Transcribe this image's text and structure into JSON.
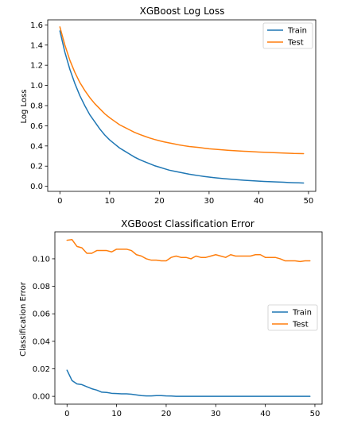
{
  "chart_data": [
    {
      "type": "line",
      "title": "XGBoost Log Loss",
      "xlabel": "",
      "ylabel": "Log Loss",
      "xlim": [
        -2.45,
        51.45
      ],
      "ylim": [
        -0.05,
        1.65
      ],
      "xticks": [
        0,
        10,
        20,
        30,
        40,
        50
      ],
      "yticks": [
        0.0,
        0.2,
        0.4,
        0.6,
        0.8,
        1.0,
        1.2,
        1.4,
        1.6
      ],
      "ytick_labels": [
        "0.0",
        "0.2",
        "0.4",
        "0.6",
        "0.8",
        "1.0",
        "1.2",
        "1.4",
        "1.6"
      ],
      "legend_position": "upper right",
      "grid": false,
      "series": [
        {
          "name": "Train",
          "color": "#1f77b4",
          "x": [
            0,
            1,
            2,
            3,
            4,
            5,
            6,
            7,
            8,
            9,
            10,
            11,
            12,
            13,
            14,
            15,
            16,
            17,
            18,
            19,
            20,
            21,
            22,
            23,
            24,
            25,
            26,
            27,
            28,
            29,
            30,
            31,
            32,
            33,
            34,
            35,
            36,
            37,
            38,
            39,
            40,
            41,
            42,
            43,
            44,
            45,
            46,
            47,
            48,
            49
          ],
          "values": [
            1.54,
            1.33,
            1.16,
            1.02,
            0.9,
            0.8,
            0.71,
            0.64,
            0.57,
            0.51,
            0.46,
            0.42,
            0.38,
            0.35,
            0.32,
            0.29,
            0.265,
            0.245,
            0.225,
            0.205,
            0.19,
            0.175,
            0.16,
            0.15,
            0.14,
            0.13,
            0.12,
            0.112,
            0.105,
            0.098,
            0.092,
            0.086,
            0.081,
            0.076,
            0.072,
            0.068,
            0.064,
            0.06,
            0.057,
            0.054,
            0.051,
            0.048,
            0.046,
            0.044,
            0.042,
            0.04,
            0.038,
            0.036,
            0.035,
            0.033
          ]
        },
        {
          "name": "Test",
          "color": "#ff7f0e",
          "x": [
            0,
            1,
            2,
            3,
            4,
            5,
            6,
            7,
            8,
            9,
            10,
            11,
            12,
            13,
            14,
            15,
            16,
            17,
            18,
            19,
            20,
            21,
            22,
            23,
            24,
            25,
            26,
            27,
            28,
            29,
            30,
            31,
            32,
            33,
            34,
            35,
            36,
            37,
            38,
            39,
            40,
            41,
            42,
            43,
            44,
            45,
            46,
            47,
            48,
            49
          ],
          "values": [
            1.58,
            1.4,
            1.25,
            1.13,
            1.03,
            0.95,
            0.88,
            0.82,
            0.77,
            0.72,
            0.68,
            0.645,
            0.61,
            0.585,
            0.56,
            0.535,
            0.515,
            0.497,
            0.48,
            0.465,
            0.452,
            0.44,
            0.43,
            0.42,
            0.41,
            0.402,
            0.395,
            0.39,
            0.385,
            0.378,
            0.372,
            0.368,
            0.364,
            0.36,
            0.356,
            0.353,
            0.35,
            0.347,
            0.345,
            0.343,
            0.34,
            0.338,
            0.336,
            0.334,
            0.332,
            0.33,
            0.328,
            0.326,
            0.325,
            0.324
          ]
        }
      ]
    },
    {
      "type": "line",
      "title": "XGBoost Classification Error",
      "xlabel": "",
      "ylabel": "Classification Error",
      "xlim": [
        -2.45,
        51.45
      ],
      "ylim": [
        -0.0057,
        0.1196
      ],
      "xticks": [
        0,
        10,
        20,
        30,
        40,
        50
      ],
      "yticks": [
        0.0,
        0.02,
        0.04,
        0.06,
        0.08,
        0.1
      ],
      "ytick_labels": [
        "0.00",
        "0.02",
        "0.04",
        "0.06",
        "0.08",
        "0.10"
      ],
      "legend_position": "center right",
      "grid": false,
      "series": [
        {
          "name": "Train",
          "color": "#1f77b4",
          "x": [
            0,
            1,
            2,
            3,
            4,
            5,
            6,
            7,
            8,
            9,
            10,
            11,
            12,
            13,
            14,
            15,
            16,
            17,
            18,
            19,
            20,
            21,
            22,
            23,
            24,
            25,
            26,
            27,
            28,
            29,
            30,
            31,
            32,
            33,
            34,
            35,
            36,
            37,
            38,
            39,
            40,
            41,
            42,
            43,
            44,
            45,
            46,
            47,
            48,
            49
          ],
          "values": [
            0.019,
            0.0115,
            0.009,
            0.0085,
            0.007,
            0.0055,
            0.0045,
            0.003,
            0.0028,
            0.0022,
            0.002,
            0.0018,
            0.0018,
            0.0015,
            0.001,
            0.0005,
            0.0003,
            0.0003,
            0.0005,
            0.0005,
            0.0003,
            0.0002,
            0.0,
            0.0,
            0.0,
            0.0,
            0.0,
            0.0,
            0.0,
            0.0,
            0.0,
            0.0,
            0.0,
            0.0,
            0.0,
            0.0,
            0.0,
            0.0,
            0.0,
            0.0,
            0.0,
            0.0,
            0.0,
            0.0,
            0.0,
            0.0,
            0.0,
            0.0,
            0.0,
            0.0
          ]
        },
        {
          "name": "Test",
          "color": "#ff7f0e",
          "x": [
            0,
            1,
            2,
            3,
            4,
            5,
            6,
            7,
            8,
            9,
            10,
            11,
            12,
            13,
            14,
            15,
            16,
            17,
            18,
            19,
            20,
            21,
            22,
            23,
            24,
            25,
            26,
            27,
            28,
            29,
            30,
            31,
            32,
            33,
            34,
            35,
            36,
            37,
            38,
            39,
            40,
            41,
            42,
            43,
            44,
            45,
            46,
            47,
            48,
            49
          ],
          "values": [
            0.1135,
            0.114,
            0.109,
            0.108,
            0.104,
            0.104,
            0.106,
            0.106,
            0.106,
            0.105,
            0.107,
            0.107,
            0.107,
            0.106,
            0.103,
            0.102,
            0.1,
            0.099,
            0.099,
            0.0985,
            0.0985,
            0.101,
            0.102,
            0.101,
            0.101,
            0.1,
            0.102,
            0.101,
            0.101,
            0.102,
            0.103,
            0.102,
            0.101,
            0.103,
            0.102,
            0.102,
            0.102,
            0.102,
            0.103,
            0.103,
            0.101,
            0.101,
            0.101,
            0.1,
            0.0985,
            0.0985,
            0.0985,
            0.098,
            0.0985,
            0.0985
          ]
        }
      ]
    }
  ]
}
